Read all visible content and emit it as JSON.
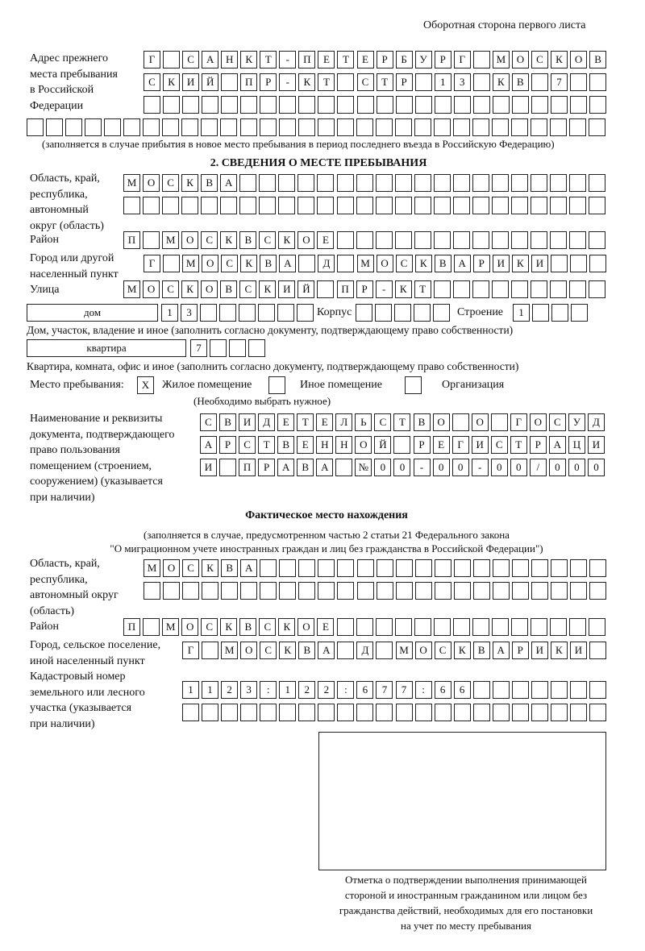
{
  "header": {
    "side_note": "Оборотная сторона первого листа"
  },
  "previous_address": {
    "label": [
      "Адрес прежнего",
      "места пребывания",
      "в Российской",
      "Федерации"
    ],
    "rows": [
      [
        "Г",
        "",
        "С",
        "А",
        "Н",
        "К",
        "Т",
        "-",
        "П",
        "Е",
        "Т",
        "Е",
        "Р",
        "Б",
        "У",
        "Р",
        "Г",
        "",
        "М",
        "О",
        "С",
        "К",
        "О",
        "В"
      ],
      [
        "С",
        "К",
        "И",
        "Й",
        "",
        "П",
        "Р",
        "-",
        "К",
        "Т",
        "",
        "С",
        "Т",
        "Р",
        "",
        "1",
        "3",
        "",
        "К",
        "В",
        "",
        "7",
        "",
        ""
      ],
      [
        "",
        "",
        "",
        "",
        "",
        "",
        "",
        "",
        "",
        "",
        "",
        "",
        "",
        "",
        "",
        "",
        "",
        "",
        "",
        "",
        "",
        "",
        "",
        ""
      ]
    ],
    "row4": [
      "",
      "",
      "",
      "",
      "",
      "",
      "",
      "",
      "",
      "",
      "",
      "",
      "",
      "",
      "",
      "",
      "",
      "",
      "",
      "",
      "",
      "",
      "",
      "",
      "",
      "",
      "",
      "",
      "",
      ""
    ],
    "note": "(заполняется в случае прибытия в новое место пребывания в период последнего въезда в Российскую Федерацию)"
  },
  "section2": {
    "title": "2. СВЕДЕНИЯ О МЕСТЕ ПРЕБЫВАНИЯ",
    "region_label": [
      "Область, край,",
      "республика,",
      "автономный",
      "округ (область)"
    ],
    "region_rows": [
      [
        "М",
        "О",
        "С",
        "К",
        "В",
        "А",
        "",
        "",
        "",
        "",
        "",
        "",
        "",
        "",
        "",
        "",
        "",
        "",
        "",
        "",
        "",
        "",
        "",
        "",
        ""
      ],
      [
        "",
        "",
        "",
        "",
        "",
        "",
        "",
        "",
        "",
        "",
        "",
        "",
        "",
        "",
        "",
        "",
        "",
        "",
        "",
        "",
        "",
        "",
        "",
        "",
        ""
      ]
    ],
    "district_label": "Район",
    "district_row": [
      "П",
      "",
      "М",
      "О",
      "С",
      "К",
      "В",
      "С",
      "К",
      "О",
      "Е",
      "",
      "",
      "",
      "",
      "",
      "",
      "",
      "",
      "",
      "",
      "",
      "",
      "",
      ""
    ],
    "city_label": [
      "Город или другой",
      "населенный пункт"
    ],
    "city_row": [
      "Г",
      "",
      "М",
      "О",
      "С",
      "К",
      "В",
      "А",
      "",
      "Д",
      "",
      "М",
      "О",
      "С",
      "К",
      "В",
      "А",
      "Р",
      "И",
      "К",
      "И",
      "",
      "",
      ""
    ],
    "street_label": "Улица",
    "street_row": [
      "М",
      "О",
      "С",
      "К",
      "О",
      "В",
      "С",
      "К",
      "И",
      "Й",
      "",
      "П",
      "Р",
      "-",
      "К",
      "Т",
      "",
      "",
      "",
      "",
      "",
      "",
      "",
      "",
      ""
    ],
    "house_type": "дом",
    "house_row": [
      "1",
      "3",
      "",
      "",
      "",
      "",
      "",
      ""
    ],
    "korpus_label": "Корпус",
    "korpus_row": [
      "",
      "",
      "",
      "",
      ""
    ],
    "stroenie_label": "Строение",
    "stroenie_row": [
      "1",
      "",
      "",
      ""
    ],
    "house_caption": "Дом, участок, владение и иное (заполнить согласно документу, подтверждающему право собственности)",
    "flat_type": "квартира",
    "flat_row": [
      "7",
      "",
      "",
      ""
    ],
    "flat_caption": "Квартира, комната, офис и иное (заполнить согласно документу, подтверждающему право собственности)",
    "place_label": "Место пребывания:",
    "options": [
      {
        "label": "Жилое помещение",
        "mark": "Х"
      },
      {
        "label": "Иное помещение",
        "mark": ""
      },
      {
        "label": "Организация",
        "mark": ""
      }
    ],
    "choose_note": "(Необходимо выбрать нужное)",
    "doc_label": [
      "Наименование и реквизиты",
      "документа, подтверждающего",
      "право пользования",
      "помещением (строением,",
      "сооружением) (указывается",
      "при наличии)"
    ],
    "doc_rows": [
      [
        "С",
        "В",
        "И",
        "Д",
        "Е",
        "Т",
        "Е",
        "Л",
        "Ь",
        "С",
        "Т",
        "В",
        "О",
        "",
        "О",
        "",
        "Г",
        "О",
        "С",
        "У",
        "Д"
      ],
      [
        "А",
        "Р",
        "С",
        "Т",
        "В",
        "Е",
        "Н",
        "Н",
        "О",
        "Й",
        "",
        "Р",
        "Е",
        "Г",
        "И",
        "С",
        "Т",
        "Р",
        "А",
        "Ц",
        "И"
      ],
      [
        "И",
        "",
        "П",
        "Р",
        "А",
        "В",
        "А",
        "",
        "№",
        "0",
        "0",
        "-",
        "0",
        "0",
        "-",
        "0",
        "0",
        "/",
        "0",
        "0",
        "0"
      ]
    ]
  },
  "actual": {
    "title": "Фактическое место нахождения",
    "note1": "(заполняется в случае, предусмотренном частью 2 статьи 21 Федерального закона",
    "note2": "\"О миграционном учете иностранных граждан и лиц без гражданства в Российской Федерации\")",
    "region_label": [
      "Область, край,",
      "республика,",
      "автономный округ",
      "(область)"
    ],
    "region_rows": [
      [
        "М",
        "О",
        "С",
        "К",
        "В",
        "А",
        "",
        "",
        "",
        "",
        "",
        "",
        "",
        "",
        "",
        "",
        "",
        "",
        "",
        "",
        "",
        "",
        "",
        ""
      ],
      [
        "",
        "",
        "",
        "",
        "",
        "",
        "",
        "",
        "",
        "",
        "",
        "",
        "",
        "",
        "",
        "",
        "",
        "",
        "",
        "",
        "",
        "",
        "",
        ""
      ]
    ],
    "district_label": "Район",
    "district_row": [
      "П",
      "",
      "М",
      "О",
      "С",
      "К",
      "В",
      "С",
      "К",
      "О",
      "Е",
      "",
      "",
      "",
      "",
      "",
      "",
      "",
      "",
      "",
      "",
      "",
      "",
      "",
      ""
    ],
    "city_label": [
      "Город, сельское поселение,",
      "иной населенный пункт"
    ],
    "city_row": [
      "Г",
      "",
      "М",
      "О",
      "С",
      "К",
      "В",
      "А",
      "",
      "Д",
      "",
      "М",
      "О",
      "С",
      "К",
      "В",
      "А",
      "Р",
      "И",
      "К",
      "И",
      ""
    ],
    "cadastre_label": [
      "Кадастровый номер",
      "земельного или лесного",
      "участка (указывается",
      "при наличии)"
    ],
    "cadastre_rows": [
      [
        "1",
        "1",
        "2",
        "3",
        ":",
        "1",
        "2",
        "2",
        ":",
        "6",
        "7",
        "7",
        ":",
        "6",
        "6",
        "",
        "",
        "",
        "",
        "",
        "",
        ""
      ],
      [
        "",
        "",
        "",
        "",
        "",
        "",
        "",
        "",
        "",
        "",
        "",
        "",
        "",
        "",
        "",
        "",
        "",
        "",
        "",
        "",
        "",
        ""
      ]
    ],
    "stamp_caption": [
      "Отметка о подтверждении выполнения принимающей",
      "стороной и иностранным гражданином или лицом без",
      "гражданства действий, необходимых для его постановки",
      "на учет по месту пребывания"
    ]
  }
}
